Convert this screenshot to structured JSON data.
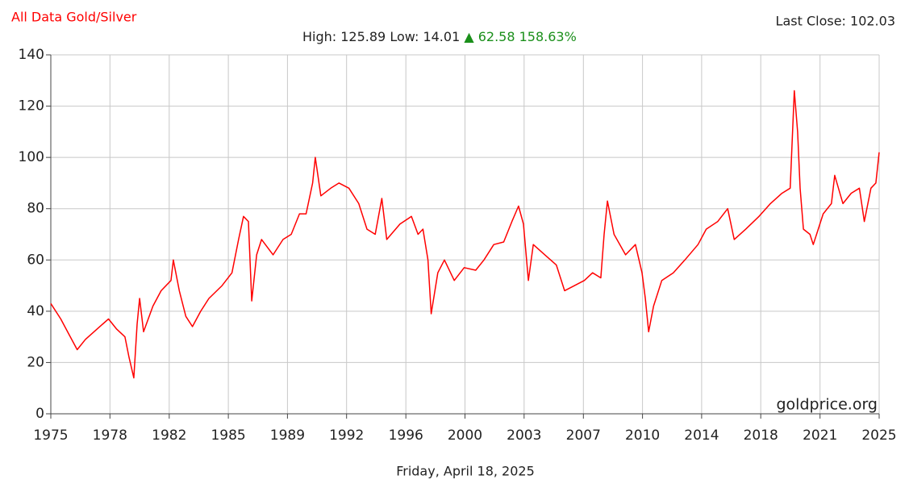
{
  "chart_data": {
    "type": "line",
    "title": "All Data Gold/Silver",
    "last_close": "Last Close: 102.03",
    "stats": {
      "high": "High: 125.89",
      "low": "Low: 14.01",
      "change": "▲ 62.58 158.63%"
    },
    "watermark": "goldprice.org",
    "xlabel": "Friday, April 18, 2025",
    "color": "#ff0000",
    "x": [
      1975.0,
      1975.6,
      1976.1,
      1976.6,
      1977.1,
      1977.8,
      1978.5,
      1979.0,
      1979.5,
      1979.75,
      1980.04,
      1980.24,
      1980.39,
      1980.63,
      1981.2,
      1981.7,
      1982.3,
      1982.44,
      1982.8,
      1983.2,
      1983.6,
      1984.1,
      1984.6,
      1985.4,
      1986.0,
      1986.4,
      1986.7,
      1987.0,
      1987.2,
      1987.5,
      1987.8,
      1988.5,
      1989.1,
      1989.6,
      1990.1,
      1990.5,
      1990.9,
      1991.06,
      1991.4,
      1992.0,
      1992.5,
      1993.1,
      1993.7,
      1994.2,
      1994.7,
      1995.1,
      1995.4,
      1996.2,
      1996.9,
      1997.3,
      1997.6,
      1997.9,
      1998.1,
      1998.5,
      1998.9,
      1999.5,
      2000.1,
      2000.8,
      2001.3,
      2001.9,
      2002.5,
      2003.0,
      2003.4,
      2003.7,
      2004.0,
      2004.3,
      2005.0,
      2005.7,
      2006.2,
      2006.8,
      2007.4,
      2007.9,
      2008.4,
      2008.6,
      2008.8,
      2009.2,
      2009.9,
      2010.5,
      2010.9,
      2011.1,
      2011.3,
      2011.6,
      2012.1,
      2012.8,
      2013.5,
      2014.3,
      2014.8,
      2015.5,
      2016.1,
      2016.5,
      2017.2,
      2018.0,
      2018.7,
      2019.4,
      2019.9,
      2020.15,
      2020.35,
      2020.5,
      2020.7,
      2021.1,
      2021.3,
      2021.9,
      2022.4,
      2022.6,
      2023.1,
      2023.6,
      2024.1,
      2024.4,
      2024.8,
      2025.1,
      2025.3
    ],
    "values": [
      43,
      37,
      31,
      25,
      29,
      33,
      37,
      33,
      30,
      22,
      14,
      35,
      45,
      32,
      42,
      48,
      52,
      60,
      48,
      38,
      34,
      40,
      45,
      50,
      55,
      68,
      77,
      75,
      44,
      62,
      68,
      62,
      68,
      70,
      78,
      78,
      90,
      100,
      85,
      88,
      90,
      88,
      82,
      72,
      70,
      84,
      68,
      74,
      77,
      70,
      72,
      60,
      39,
      55,
      60,
      52,
      57,
      56,
      60,
      66,
      67,
      75,
      81,
      74,
      52,
      66,
      62,
      58,
      48,
      50,
      52,
      55,
      53,
      70,
      83,
      70,
      62,
      66,
      55,
      45,
      32,
      42,
      52,
      55,
      60,
      66,
      72,
      75,
      80,
      68,
      72,
      77,
      82,
      86,
      88,
      126,
      110,
      88,
      72,
      70,
      66,
      78,
      82,
      93,
      82,
      86,
      88,
      75,
      88,
      90,
      102
    ],
    "xlim": [
      1975.0,
      2025.3
    ],
    "xticks": [
      {
        "value": 1975.0,
        "label": "1975"
      },
      {
        "value": 1978.59,
        "label": "1978"
      },
      {
        "value": 1982.19,
        "label": "1982"
      },
      {
        "value": 1985.78,
        "label": "1985"
      },
      {
        "value": 1989.37,
        "label": "1989"
      },
      {
        "value": 1992.96,
        "label": "1992"
      },
      {
        "value": 1996.56,
        "label": "1996"
      },
      {
        "value": 2000.15,
        "label": "2000"
      },
      {
        "value": 2003.74,
        "label": "2003"
      },
      {
        "value": 2007.34,
        "label": "2007"
      },
      {
        "value": 2010.93,
        "label": "2010"
      },
      {
        "value": 2014.52,
        "label": "2014"
      },
      {
        "value": 2018.11,
        "label": "2018"
      },
      {
        "value": 2021.71,
        "label": "2021"
      },
      {
        "value": 2025.3,
        "label": "2025"
      }
    ],
    "ylim": [
      0,
      140
    ],
    "yticks": [
      0,
      20,
      40,
      60,
      80,
      100,
      120,
      140
    ],
    "grid": true
  }
}
